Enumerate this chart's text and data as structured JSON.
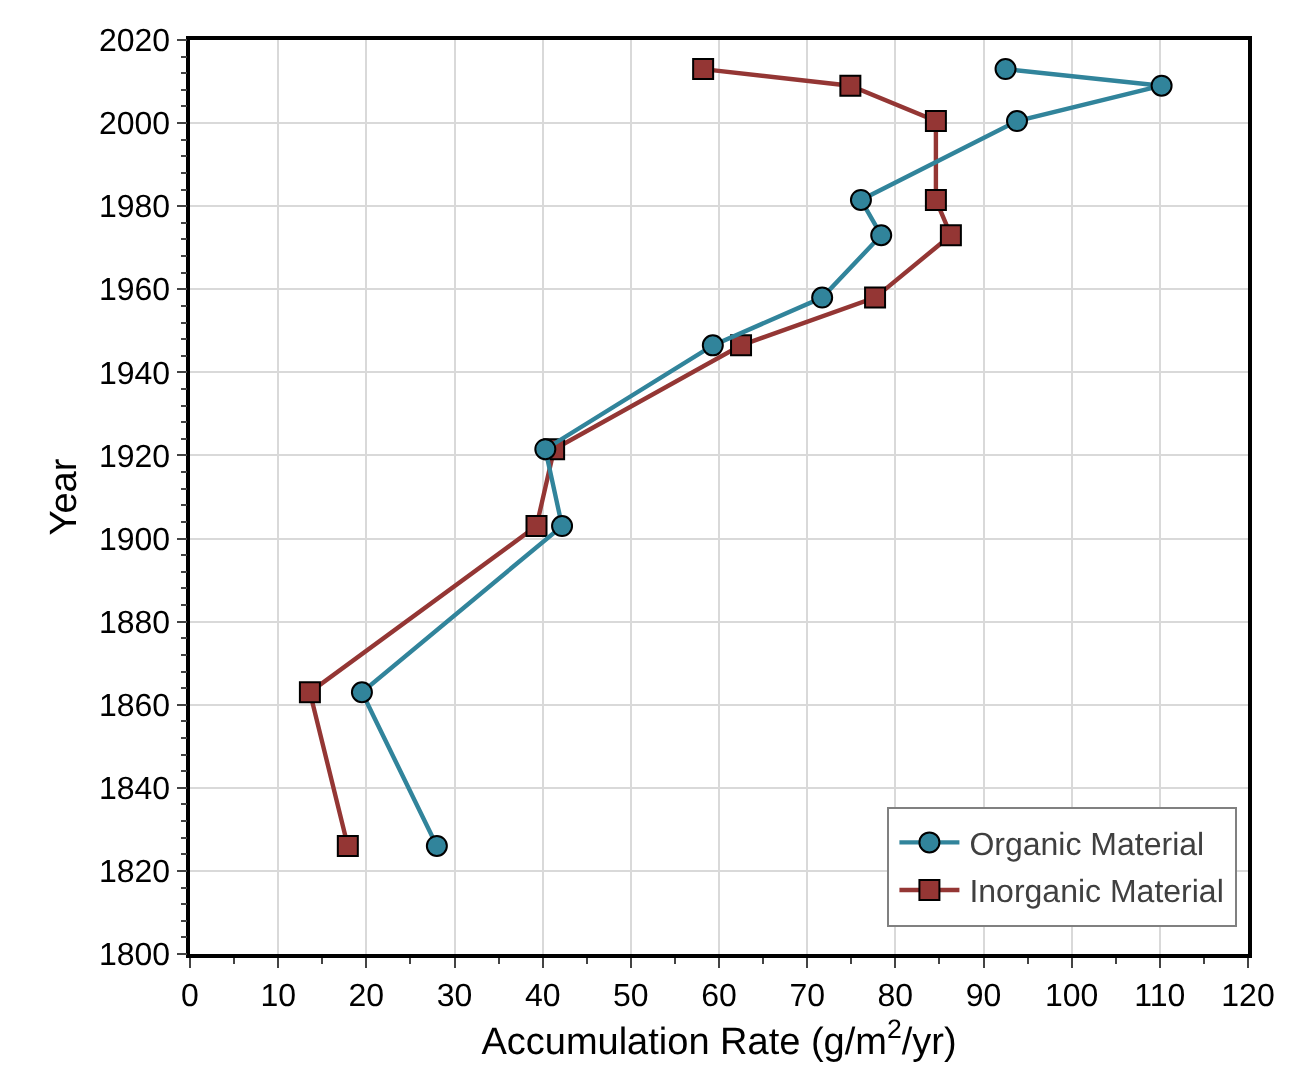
{
  "chart_data": {
    "type": "line",
    "xlabel": "Accumulation Rate (g/m$^{2}$/yr)",
    "ylabel": "Year",
    "xlim": [
      0,
      120
    ],
    "xticks": [
      0,
      10,
      20,
      30,
      40,
      50,
      60,
      70,
      80,
      90,
      100,
      110,
      120
    ],
    "ylim": [
      1800,
      2020
    ],
    "yticks": [
      1800,
      1820,
      1840,
      1860,
      1880,
      1900,
      1920,
      1940,
      1960,
      1980,
      2000,
      2020
    ],
    "grid": true,
    "legend": "bottom right",
    "series": [
      {
        "name": "Organic Material",
        "color": "#31849b",
        "marker": "circle",
        "x": [
          92.5,
          110.2,
          93.8,
          76.1,
          78.4,
          71.7,
          59.3,
          40.3,
          42.2,
          19.5,
          28.0
        ],
        "values": [
          2013,
          2009,
          2000.5,
          1981.5,
          1973,
          1958,
          1946.5,
          1921.5,
          1903,
          1863,
          1826
        ]
      },
      {
        "name": "Inorganic Material",
        "color": "#943634",
        "marker": "square",
        "x": [
          58.2,
          74.9,
          84.6,
          84.6,
          86.3,
          77.7,
          62.5,
          41.3,
          39.3,
          13.6,
          17.9
        ],
        "values": [
          2013,
          2009,
          2000.5,
          1981.5,
          1973,
          1958,
          1946.5,
          1921.5,
          1903,
          1863,
          1826
        ]
      }
    ]
  }
}
